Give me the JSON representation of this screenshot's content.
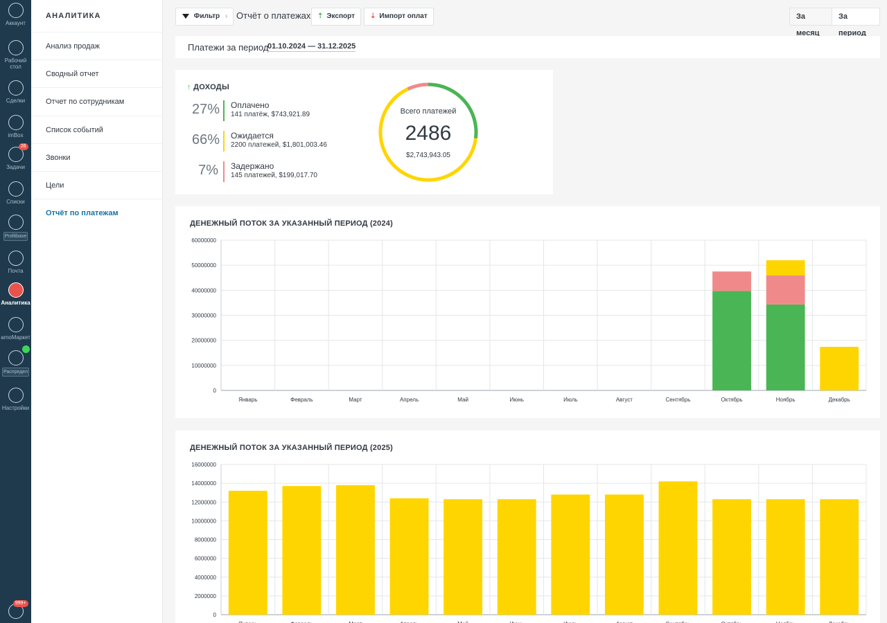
{
  "nav": [
    {
      "label": "Аккаунт",
      "icon": "account-icon"
    },
    {
      "label": "Рабочий стол",
      "icon": "dashboard-icon"
    },
    {
      "label": "Сделки",
      "icon": "dollar-icon"
    },
    {
      "label": "imBox",
      "icon": "chat-icon"
    },
    {
      "label": "Задачи",
      "icon": "check-icon",
      "badge": "26"
    },
    {
      "label": "Списки",
      "icon": "list-icon"
    },
    {
      "label": "Profitbase",
      "icon": "pb-icon",
      "tag": true
    },
    {
      "label": "Почта",
      "icon": "mail-icon"
    },
    {
      "label": "Аналитика",
      "icon": "analytics-icon",
      "active": true
    },
    {
      "label": "amoМаркет",
      "icon": "market-icon"
    },
    {
      "label": "Распредел",
      "icon": "distribution-icon",
      "tag": true
    },
    {
      "label": "Настройки",
      "icon": "settings-icon"
    },
    {
      "label": "",
      "icon": "support-icon",
      "badge": "999+"
    }
  ],
  "sidebar": {
    "title": "АНАЛИТИКА",
    "items": [
      {
        "label": "Анализ продаж"
      },
      {
        "label": "Сводный отчет"
      },
      {
        "label": "Отчет по сотрудникам"
      },
      {
        "label": "Список событий"
      },
      {
        "label": "Звонки"
      },
      {
        "label": "Цели"
      },
      {
        "label": "Отчёт по платежам",
        "active": true
      }
    ]
  },
  "toolbar": {
    "filter_label": "Фильтр",
    "report_title": "Отчёт о платежах",
    "export_label": "Экспорт",
    "import_label": "Импорт оплат",
    "month_label": "За месяц",
    "period_label": "За период"
  },
  "period": {
    "label": "Платежи за период",
    "value": "01.10.2024 — 31.12.2025"
  },
  "income": {
    "title": "ДОХОДЫ",
    "rows": [
      {
        "pct": "27%",
        "name": "Оплачено",
        "detail": "141 платёж, $743,921.89",
        "color": "#4ab554"
      },
      {
        "pct": "66%",
        "name": "Ожидается",
        "detail": "2200 платежей, $1,801,003.46",
        "color": "#ffd500"
      },
      {
        "pct": "7%",
        "name": "Задержано",
        "detail": "145 платежей, $199,017.70",
        "color": "#f08a8a"
      }
    ],
    "total_label": "Всего платежей",
    "total_count": "2486",
    "total_sum": "$2,743,943.05",
    "shares": [
      0.27,
      0.66,
      0.07
    ]
  },
  "chart_2024_title": "ДЕНЕЖНЫЙ ПОТОК ЗА УКАЗАННЫЙ ПЕРИОД (2024)",
  "chart_2025_title": "ДЕНЕЖНЫЙ ПОТОК ЗА УКАЗАННЫЙ ПЕРИОД (2025)",
  "chart_data": [
    {
      "type": "bar",
      "stacked": true,
      "title": "ДЕНЕЖНЫЙ ПОТОК ЗА УКАЗАННЫЙ ПЕРИОД (2024)",
      "categories": [
        "Январь",
        "Февраль",
        "Март",
        "Апрель",
        "Май",
        "Июнь",
        "Июль",
        "Август",
        "Сентябрь",
        "Октябрь",
        "Ноябрь",
        "Декабрь"
      ],
      "ylim": [
        0,
        60000000
      ],
      "yticks": [
        0,
        10000000,
        20000000,
        30000000,
        40000000,
        50000000,
        60000000
      ],
      "series": [
        {
          "color": "#4ab554",
          "values": [
            0,
            0,
            0,
            0,
            0,
            0,
            0,
            0,
            0,
            39700000,
            34300000,
            0
          ]
        },
        {
          "color": "#f08a8a",
          "values": [
            0,
            0,
            0,
            0,
            0,
            0,
            0,
            0,
            0,
            7800000,
            11600000,
            0
          ]
        },
        {
          "color": "#ffd500",
          "values": [
            0,
            0,
            0,
            0,
            0,
            0,
            0,
            0,
            0,
            0,
            6100000,
            17400000
          ]
        }
      ],
      "grid": true
    },
    {
      "type": "bar",
      "stacked": true,
      "title": "ДЕНЕЖНЫЙ ПОТОК ЗА УКАЗАННЫЙ ПЕРИОД (2025)",
      "categories": [
        "Январь",
        "Февраль",
        "Март",
        "Апрель",
        "Май",
        "Июнь",
        "Июль",
        "Август",
        "Сентябрь",
        "Октябрь",
        "Ноябрь",
        "Декабрь"
      ],
      "ylim": [
        0,
        16000000
      ],
      "yticks": [
        0,
        2000000,
        4000000,
        6000000,
        8000000,
        10000000,
        12000000,
        14000000,
        16000000
      ],
      "series": [
        {
          "color": "#ffd500",
          "values": [
            13200000,
            13700000,
            13800000,
            12400000,
            12300000,
            12300000,
            12800000,
            12800000,
            14200000,
            12300000,
            12300000,
            12300000
          ]
        }
      ],
      "grid": true
    }
  ]
}
